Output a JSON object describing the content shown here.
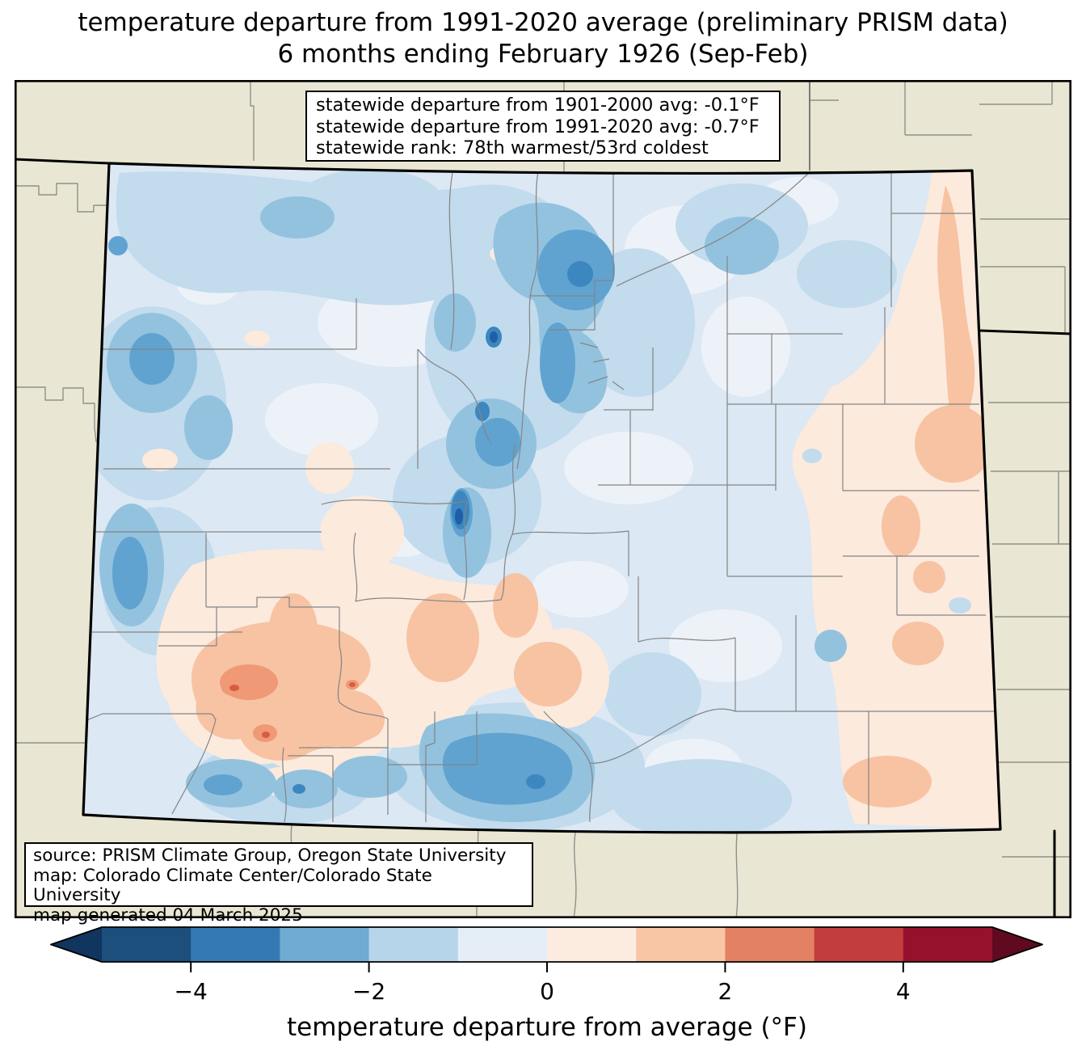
{
  "title": {
    "line1": "temperature departure from 1991-2020 average (preliminary PRISM data)",
    "line2": "6 months ending February 1926 (Sep-Feb)"
  },
  "stats_box": {
    "lines": [
      "statewide departure from 1901-2000 avg: -0.1°F",
      "statewide departure from 1991-2020 avg: -0.7°F",
      "statewide rank: 78th warmest/53rd coldest"
    ]
  },
  "source_box": {
    "lines": [
      "source: PRISM Climate Group, Oregon State University",
      "map: Colorado Climate Center/Colorado State University",
      "map generated 04 March 2025"
    ]
  },
  "colorbar": {
    "label": "temperature departure from average (°F)",
    "tick_labels": [
      "−4",
      "−2",
      "0",
      "2",
      "4"
    ],
    "tick_values": [
      -4,
      -2,
      0,
      2,
      4
    ],
    "range": [
      -5,
      5
    ],
    "under_color": "#10355e",
    "segment_colors": [
      "#1d4f7c",
      "#3579b4",
      "#6fabd3",
      "#b7d5ea",
      "#e5eef6",
      "#fcecdf",
      "#f8c6a5",
      "#e38163",
      "#c23d3d",
      "#96122c"
    ],
    "over_color": "#5f0a1f",
    "outline_color": "#000000"
  },
  "map": {
    "region": "Colorado",
    "colors": {
      "outside": "#e9e7d3",
      "neighbor_line": "#90908a",
      "county_line": "#848484",
      "state_border": "#000000",
      "base": "#dce8f3",
      "pale": "#edf2f8",
      "light": "#c2dbed",
      "mid": "#93c2df",
      "strong": "#60a3d0",
      "dark": "#3c87c0",
      "darkest": "#1e5fa8",
      "peach": "#fceadd",
      "salmon": "#f7c3a3",
      "deep_salmon": "#ef9976",
      "red": "#d95c40"
    }
  }
}
